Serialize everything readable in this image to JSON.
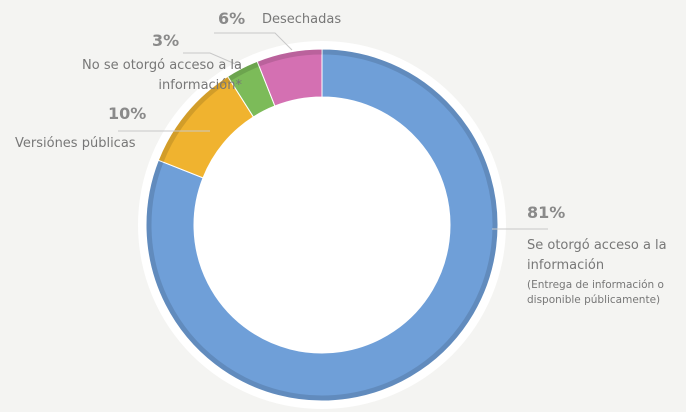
{
  "chart_data": {
    "type": "pie",
    "donut": true,
    "categories": [
      "Se otorgó acceso a la información",
      "Versiónes públicas",
      "No se otorgó acceso a la información*",
      "Desechadas"
    ],
    "values": [
      81,
      10,
      3,
      6
    ],
    "value_labels": [
      "81%",
      "10%",
      "3%",
      "6%"
    ],
    "colors": [
      "#6f9fd8",
      "#f0b32f",
      "#7cbb59",
      "#d470b2"
    ],
    "annotations": [
      "(Entrega de información o disponible públicamente)"
    ]
  }
}
